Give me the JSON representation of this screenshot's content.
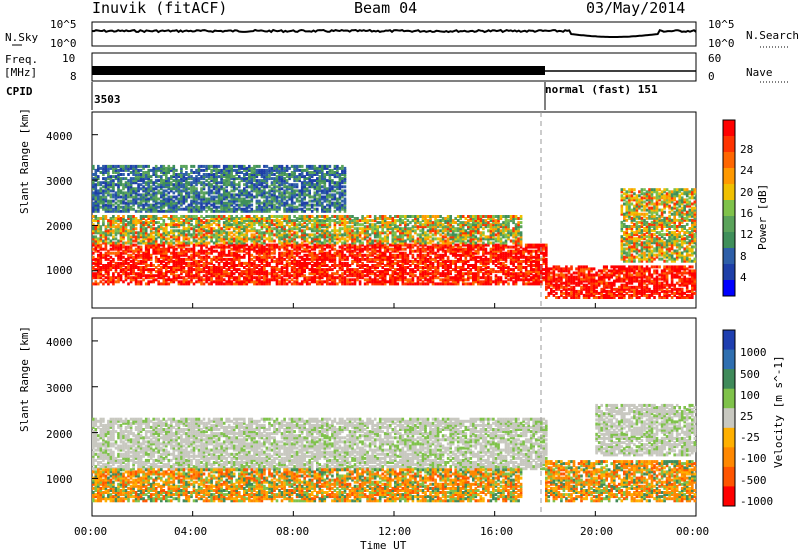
{
  "header": {
    "station": "Inuvik (fitACF)",
    "beam": "Beam 04",
    "date": "03/May/2014"
  },
  "left_labels": {
    "nsky": "N.Sky",
    "freq": "Freq.",
    "freq_unit": "[MHz]",
    "cpid": "CPID"
  },
  "right_labels": {
    "nsearch": "N.Search",
    "nave": "Nave"
  },
  "noise_ticks": {
    "left_top": "10^5",
    "left_bottom": "10^0",
    "right_top": "10^5",
    "right_bottom": "10^0"
  },
  "freq_ticks": {
    "left_top": "10",
    "left_bottom": "8",
    "right_top": "60",
    "right_bottom": "0"
  },
  "cpid": {
    "first": "3503",
    "second": "normal (fast) 151",
    "switch_hour": 18
  },
  "x_axis": {
    "label": "Time UT",
    "ticks": [
      "00:00",
      "04:00",
      "08:00",
      "12:00",
      "16:00",
      "20:00",
      "00:00"
    ],
    "range_hours": [
      0,
      24
    ]
  },
  "y_axis": {
    "label": "Slant Range [km]",
    "ticks": [
      "1000",
      "2000",
      "3000",
      "4000"
    ],
    "range_km": [
      180,
      4500
    ]
  },
  "colors": {
    "power": [
      "#0000ff",
      "#1e3fa8",
      "#2e5fa8",
      "#3f8f5a",
      "#5aa35a",
      "#7fc24a",
      "#f0c000",
      "#ff9900",
      "#ff6600",
      "#ff3300",
      "#ff0000"
    ],
    "velocity": [
      "#1f3fb0",
      "#2f6fb0",
      "#3f8a5a",
      "#7fc24a",
      "#c8c8c0",
      "#ffb000",
      "#ff8800",
      "#ff5500",
      "#ff0000"
    ]
  },
  "chart_data": [
    {
      "type": "heatmap",
      "title": "",
      "xlabel": "Time UT",
      "ylabel": "Slant Range [km]",
      "xlim": [
        0,
        24
      ],
      "ylim": [
        180,
        4500
      ],
      "colorbar": {
        "label": "Power [dB]",
        "ticks": [
          "4",
          "8",
          "12",
          "16",
          "20",
          "24",
          "28"
        ]
      },
      "bands": [
        {
          "t0": 0,
          "t1": 18,
          "r0": 700,
          "r1": 1600,
          "level": "strong"
        },
        {
          "t0": 0,
          "t1": 17,
          "r0": 1600,
          "r1": 2200,
          "level": "medium"
        },
        {
          "t0": 0,
          "t1": 10,
          "r0": 2300,
          "r1": 3300,
          "level": "weak"
        },
        {
          "t0": 18,
          "t1": 24,
          "r0": 400,
          "r1": 1100,
          "level": "strong"
        },
        {
          "t0": 21,
          "t1": 24,
          "r0": 1200,
          "r1": 2800,
          "level": "medium"
        }
      ]
    },
    {
      "type": "heatmap",
      "title": "",
      "xlabel": "Time UT",
      "ylabel": "Slant Range [km]",
      "xlim": [
        0,
        24
      ],
      "ylim": [
        180,
        4500
      ],
      "colorbar": {
        "label": "Velocity [m s^-1]",
        "ticks": [
          "1000",
          "500",
          "100",
          "25",
          "-25",
          "-100",
          "-500",
          "-1000"
        ]
      },
      "bands": [
        {
          "t0": 0,
          "t1": 18,
          "r0": 1200,
          "r1": 2300,
          "level": "ground"
        },
        {
          "t0": 0,
          "t1": 17,
          "r0": 500,
          "r1": 1200,
          "level": "away"
        },
        {
          "t0": 18,
          "t1": 24,
          "r0": 500,
          "r1": 1400,
          "level": "away"
        },
        {
          "t0": 20,
          "t1": 24,
          "r0": 1500,
          "r1": 2600,
          "level": "ground"
        }
      ]
    }
  ]
}
